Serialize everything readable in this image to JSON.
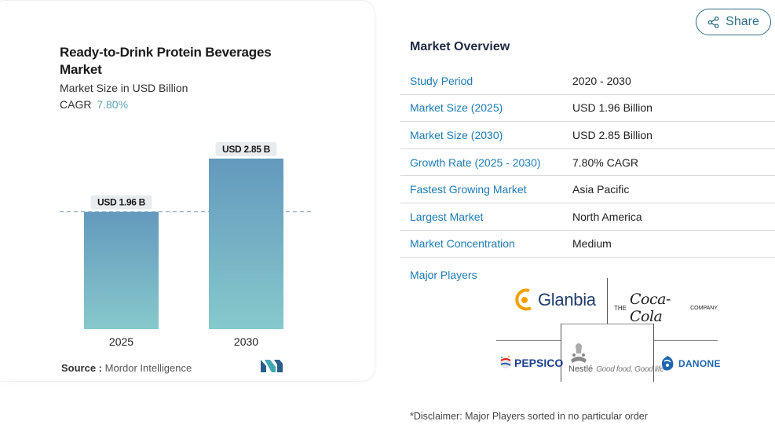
{
  "chart": {
    "title": "Ready-to-Drink Protein Beverages Market",
    "subtitle": "Market Size in USD Billion",
    "cagr_label": "CAGR",
    "cagr_value": "7.80%",
    "source_label": "Source :",
    "source_value": "Mordor Intelligence"
  },
  "chart_data": {
    "type": "bar",
    "categories": [
      "2025",
      "2030"
    ],
    "values": [
      1.96,
      2.85
    ],
    "data_labels": [
      "USD 1.96 B",
      "USD 2.85 B"
    ],
    "title": "Ready-to-Drink Protein Beverages Market",
    "subtitle": "Market Size in USD Billion",
    "xlabel": "",
    "ylabel": "",
    "ylim": [
      0,
      3.15
    ],
    "grid": false,
    "colors": {
      "bar_top": "#6399bd",
      "bar_bottom": "#86c9cc",
      "label_bg": "#e8ecef",
      "dashed_line": "#7da3b8"
    }
  },
  "share": {
    "label": "Share"
  },
  "overview": {
    "title": "Market Overview",
    "rows": [
      {
        "label": "Study Period",
        "value": "2020 - 2030"
      },
      {
        "label": "Market Size (2025)",
        "value": "USD 1.96 Billion"
      },
      {
        "label": "Market Size (2030)",
        "value": "USD 2.85 Billion"
      },
      {
        "label": "Growth Rate (2025 - 2030)",
        "value": "7.80% CAGR"
      },
      {
        "label": "Fastest Growing Market",
        "value": "Asia Pacific"
      },
      {
        "label": "Largest Market",
        "value": "North America"
      },
      {
        "label": "Market Concentration",
        "value": "Medium"
      }
    ],
    "major_players_title": "Major Players",
    "players": {
      "glanbia": "Glanbia",
      "cocacola_the": "THE",
      "cocacola_script": "Coca-Cola",
      "cocacola_company": "COMPANY",
      "pepsico": "PEPSICO",
      "nestle": "Nestlé",
      "nestle_tagline": "Good food, Good life",
      "danone": "DANONE"
    },
    "disclaimer": "*Disclaimer: Major Players sorted in no particular order"
  },
  "colors": {
    "accent": "#1e7bb4",
    "title": "#1f2a44",
    "share": "#2f6e87"
  }
}
